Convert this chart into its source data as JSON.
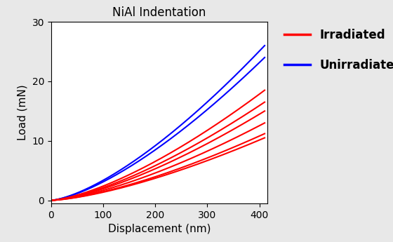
{
  "title": "NiAl Indentation",
  "xlabel": "Displacement (nm)",
  "ylabel": "Load (mN)",
  "xlim": [
    0,
    415
  ],
  "ylim": [
    -0.5,
    30
  ],
  "xticks": [
    0,
    100,
    200,
    300,
    400
  ],
  "yticks": [
    0,
    10,
    20,
    30
  ],
  "blue_curves": [
    {
      "x_end": 410,
      "y_end": 26.0,
      "power": 1.45
    },
    {
      "x_end": 410,
      "y_end": 24.0,
      "power": 1.45
    }
  ],
  "red_curves": [
    {
      "x_end": 410,
      "y_end": 18.5,
      "power": 1.45
    },
    {
      "x_end": 410,
      "y_end": 16.5,
      "power": 1.45
    },
    {
      "x_end": 410,
      "y_end": 15.0,
      "power": 1.45
    },
    {
      "x_end": 410,
      "y_end": 13.0,
      "power": 1.45
    },
    {
      "x_end": 410,
      "y_end": 11.2,
      "power": 1.45
    },
    {
      "x_end": 410,
      "y_end": 10.5,
      "power": 1.45
    }
  ],
  "blue_color": "#0000FF",
  "red_color": "#FF0000",
  "line_width": 1.5,
  "legend_irradiated_label": "Irradiated",
  "legend_unirradiated_label": "Unirradiated",
  "legend_fontsize": 12,
  "title_fontsize": 12,
  "axis_label_fontsize": 11,
  "tick_fontsize": 10,
  "background_color": "#ffffff",
  "fig_background_color": "#e8e8e8"
}
